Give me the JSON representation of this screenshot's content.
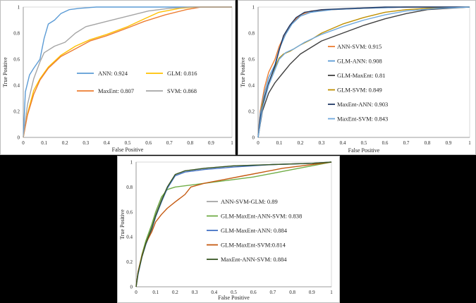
{
  "chart_data": [
    {
      "type": "line",
      "xlabel": "False Positive",
      "ylabel": "True Positive",
      "xlim": [
        0,
        1
      ],
      "ylim": [
        0,
        1
      ],
      "xticks": [
        "0",
        "0.1",
        "0.2",
        "0.3",
        "0.4",
        "0.5",
        "0.6",
        "0.7",
        "0.8",
        "0.9",
        "1"
      ],
      "yticks": [
        "0",
        "0.2",
        "0.4",
        "0.6",
        "0.8",
        "1"
      ],
      "grid": false,
      "legend": "center, two columns",
      "series": [
        {
          "name": "ANN",
          "label": "ANN: 0.924",
          "color": "#5b9bd5",
          "x": [
            0,
            0.01,
            0.03,
            0.05,
            0.08,
            0.1,
            0.12,
            0.15,
            0.18,
            0.22,
            0.27,
            0.35,
            0.5,
            0.7,
            1
          ],
          "y": [
            0,
            0.35,
            0.48,
            0.53,
            0.6,
            0.76,
            0.87,
            0.9,
            0.95,
            0.98,
            0.99,
            1,
            1,
            1,
            1
          ]
        },
        {
          "name": "GLM",
          "label": "GLM: 0.816",
          "color": "#ffc000",
          "x": [
            0,
            0.02,
            0.05,
            0.08,
            0.12,
            0.18,
            0.25,
            0.32,
            0.4,
            0.5,
            0.58,
            0.65,
            0.75,
            0.82,
            1
          ],
          "y": [
            0,
            0.18,
            0.36,
            0.45,
            0.54,
            0.63,
            0.7,
            0.75,
            0.79,
            0.85,
            0.91,
            0.96,
            0.99,
            1,
            1
          ]
        },
        {
          "name": "MaxEnt",
          "label": "MaxEnt: 0.807",
          "color": "#ed7d31",
          "x": [
            0,
            0.02,
            0.05,
            0.08,
            0.12,
            0.18,
            0.25,
            0.32,
            0.4,
            0.5,
            0.58,
            0.68,
            0.78,
            0.85,
            1
          ],
          "y": [
            0,
            0.17,
            0.33,
            0.44,
            0.53,
            0.62,
            0.68,
            0.74,
            0.78,
            0.84,
            0.89,
            0.94,
            0.98,
            1,
            1
          ]
        },
        {
          "name": "SVM",
          "label": "SVM: 0.868",
          "color": "#a5a5a5",
          "x": [
            0,
            0.02,
            0.05,
            0.08,
            0.1,
            0.15,
            0.2,
            0.25,
            0.3,
            0.4,
            0.5,
            0.6,
            0.7,
            0.8,
            1
          ],
          "y": [
            0,
            0.25,
            0.45,
            0.58,
            0.65,
            0.7,
            0.73,
            0.8,
            0.85,
            0.89,
            0.93,
            0.97,
            0.99,
            1,
            1
          ]
        }
      ],
      "legend_entries": [
        [
          "ANN",
          "GLM"
        ],
        [
          "MaxEnt",
          "SVM"
        ]
      ]
    },
    {
      "type": "line",
      "xlabel": "False Positive",
      "ylabel": "True Positive",
      "xlim": [
        0,
        1
      ],
      "ylim": [
        0,
        1
      ],
      "xticks": [
        "0",
        "0.1",
        "0.2",
        "0.3",
        "0.4",
        "0.5",
        "0.6",
        "0.7",
        "0.8",
        "0.9",
        "1"
      ],
      "yticks": [
        "0",
        "0.2",
        "0.4",
        "0.6",
        "0.8",
        "1"
      ],
      "grid": false,
      "legend": "right, single column",
      "series": [
        {
          "name": "ANN-SVM",
          "label": "ANN-SVM: 0.915",
          "color": "#ed7d31",
          "x": [
            0,
            0.01,
            0.03,
            0.05,
            0.08,
            0.1,
            0.13,
            0.16,
            0.2,
            0.25,
            0.35,
            0.5,
            0.7,
            0.9,
            1
          ],
          "y": [
            0,
            0.2,
            0.38,
            0.5,
            0.6,
            0.7,
            0.8,
            0.88,
            0.94,
            0.97,
            0.98,
            0.99,
            1,
            1,
            1
          ]
        },
        {
          "name": "GLM-ANN",
          "label": "GLM-ANN: 0.908",
          "color": "#5b9bd5",
          "x": [
            0,
            0.01,
            0.03,
            0.05,
            0.08,
            0.1,
            0.13,
            0.16,
            0.2,
            0.25,
            0.35,
            0.5,
            0.7,
            0.9,
            1
          ],
          "y": [
            0,
            0.18,
            0.34,
            0.46,
            0.56,
            0.68,
            0.79,
            0.87,
            0.93,
            0.96,
            0.98,
            0.99,
            1,
            1,
            1
          ]
        },
        {
          "name": "GLM-MaxEnt",
          "label": "GLM-MaxEnt: 0.81",
          "color": "#404040",
          "x": [
            0,
            0.02,
            0.05,
            0.08,
            0.12,
            0.15,
            0.2,
            0.25,
            0.3,
            0.4,
            0.5,
            0.6,
            0.7,
            0.8,
            0.9,
            1
          ],
          "y": [
            0,
            0.2,
            0.34,
            0.42,
            0.5,
            0.56,
            0.64,
            0.69,
            0.74,
            0.8,
            0.86,
            0.91,
            0.95,
            0.98,
            0.99,
            1
          ]
        },
        {
          "name": "GLM-SVM",
          "label": "GLM-SVM: 0.849",
          "color": "#bf8f00",
          "x": [
            0,
            0.02,
            0.05,
            0.08,
            0.1,
            0.12,
            0.15,
            0.2,
            0.25,
            0.3,
            0.4,
            0.5,
            0.6,
            0.7,
            0.8,
            1
          ],
          "y": [
            0,
            0.25,
            0.42,
            0.54,
            0.61,
            0.64,
            0.66,
            0.71,
            0.75,
            0.8,
            0.87,
            0.92,
            0.96,
            0.98,
            0.99,
            1
          ]
        },
        {
          "name": "MaxEnt-ANN",
          "label": "MaxEnt-ANN: 0.903",
          "color": "#1f3864",
          "x": [
            0,
            0.01,
            0.03,
            0.05,
            0.08,
            0.1,
            0.12,
            0.15,
            0.18,
            0.22,
            0.3,
            0.45,
            0.6,
            0.8,
            1
          ],
          "y": [
            0,
            0.15,
            0.3,
            0.42,
            0.55,
            0.67,
            0.78,
            0.86,
            0.92,
            0.96,
            0.98,
            0.99,
            1,
            1,
            1
          ]
        },
        {
          "name": "MaxEnt-SVM",
          "label": "MaxEnt-SVM: 0.843",
          "color": "#6fa8dc",
          "x": [
            0,
            0.02,
            0.05,
            0.08,
            0.1,
            0.13,
            0.17,
            0.22,
            0.3,
            0.4,
            0.5,
            0.6,
            0.7,
            0.85,
            1
          ],
          "y": [
            0,
            0.22,
            0.4,
            0.52,
            0.6,
            0.65,
            0.68,
            0.73,
            0.79,
            0.85,
            0.9,
            0.94,
            0.97,
            0.99,
            1
          ]
        }
      ]
    },
    {
      "type": "line",
      "xlabel": "False Positive",
      "ylabel": "True Positive",
      "xlim": [
        0,
        1
      ],
      "ylim": [
        0,
        1
      ],
      "xticks": [
        "0",
        "0.1",
        "0.2",
        "0.3",
        "0.4",
        "0.5",
        "0.6",
        "0.7",
        "0.8",
        "0.9",
        "1"
      ],
      "yticks": [
        "0",
        "0.2",
        "0.4",
        "0.6",
        "0.8",
        "1"
      ],
      "grid": false,
      "legend": "center-right, single column",
      "series": [
        {
          "name": "ANN-SVM-GLM",
          "label": "ANN-SVM-GLM: 0.89",
          "color": "#a5a5a5",
          "x": [
            0,
            0.01,
            0.03,
            0.05,
            0.08,
            0.1,
            0.13,
            0.16,
            0.2,
            0.25,
            0.35,
            0.5,
            0.7,
            0.9,
            1
          ],
          "y": [
            0,
            0.12,
            0.25,
            0.36,
            0.48,
            0.58,
            0.7,
            0.8,
            0.9,
            0.93,
            0.95,
            0.97,
            0.98,
            0.99,
            1
          ]
        },
        {
          "name": "GLM-MaxEnt-ANN-SVM",
          "label": "GLM-MaxEnt-ANN-SVM: 0.838",
          "color": "#70ad47",
          "x": [
            0,
            0.01,
            0.03,
            0.05,
            0.08,
            0.1,
            0.13,
            0.16,
            0.2,
            0.3,
            0.4,
            0.5,
            0.6,
            0.7,
            0.8,
            0.9,
            1
          ],
          "y": [
            0,
            0.12,
            0.26,
            0.37,
            0.5,
            0.6,
            0.72,
            0.78,
            0.8,
            0.82,
            0.84,
            0.86,
            0.88,
            0.91,
            0.94,
            0.97,
            1
          ]
        },
        {
          "name": "GLM-MaxEnt-ANN",
          "label": "GLM-MaxEnt-ANN: 0.884",
          "color": "#4472c4",
          "x": [
            0,
            0.01,
            0.03,
            0.05,
            0.08,
            0.1,
            0.13,
            0.16,
            0.2,
            0.25,
            0.35,
            0.5,
            0.7,
            0.9,
            1
          ],
          "y": [
            0,
            0.1,
            0.24,
            0.34,
            0.46,
            0.56,
            0.68,
            0.79,
            0.89,
            0.92,
            0.94,
            0.96,
            0.98,
            0.99,
            1
          ]
        },
        {
          "name": "GLM-MaxEnt-SVM",
          "label": "GLM-MaxEnt-SVM:0.814",
          "color": "#c55a11",
          "x": [
            0,
            0.01,
            0.03,
            0.05,
            0.08,
            0.1,
            0.13,
            0.16,
            0.2,
            0.25,
            0.28,
            0.35,
            0.45,
            0.55,
            0.65,
            0.75,
            0.85,
            1
          ],
          "y": [
            0,
            0.12,
            0.25,
            0.35,
            0.44,
            0.52,
            0.58,
            0.63,
            0.68,
            0.74,
            0.8,
            0.83,
            0.86,
            0.89,
            0.92,
            0.95,
            0.97,
            1
          ]
        },
        {
          "name": "MaxEnt-ANN-SVM",
          "label": "MaxEnt-ANN-SVM: 0.884",
          "color": "#375623",
          "x": [
            0,
            0.01,
            0.03,
            0.05,
            0.08,
            0.1,
            0.13,
            0.16,
            0.2,
            0.25,
            0.35,
            0.5,
            0.7,
            0.9,
            1
          ],
          "y": [
            0,
            0.11,
            0.24,
            0.35,
            0.47,
            0.57,
            0.69,
            0.8,
            0.9,
            0.93,
            0.95,
            0.97,
            0.98,
            0.99,
            1
          ]
        }
      ]
    }
  ]
}
